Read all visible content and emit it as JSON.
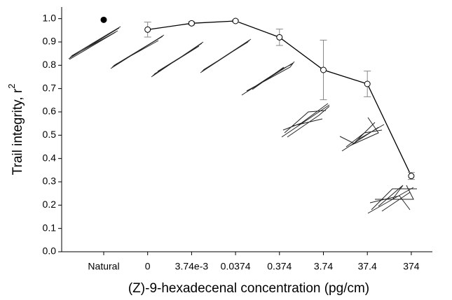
{
  "chart_data": {
    "type": "line",
    "y_label": "Trail integrity, r",
    "y_label_superscript": "2",
    "x_label": "(Z)-9-hexadecenal concentration (pg/cm)",
    "categories": [
      "Natural",
      "0",
      "3.74e-3",
      "0.0374",
      "0.374",
      "3.74",
      "37.4",
      "374"
    ],
    "series": [
      {
        "name": "Natural",
        "color": "#000000",
        "filled": true,
        "connected": false,
        "values": [
          0.995,
          null,
          null,
          null,
          null,
          null,
          null,
          null
        ],
        "errors": [
          null,
          null,
          null,
          null,
          null,
          null,
          null,
          null
        ]
      },
      {
        "name": "(Z)-9-hexadecenal",
        "color": "#000000",
        "filled": false,
        "connected": true,
        "values": [
          null,
          0.953,
          0.98,
          0.99,
          0.92,
          0.78,
          0.72,
          0.325
        ],
        "errors": [
          null,
          0.032,
          0.007,
          0.004,
          0.035,
          0.128,
          0.055,
          0.015
        ]
      }
    ],
    "ylim": [
      0,
      1.05
    ],
    "yticks": [
      {
        "value": 0,
        "label": "0.0"
      },
      0.1,
      0.2,
      0.3,
      0.4,
      0.5,
      0.6,
      0.7,
      0.8,
      0.9,
      {
        "value": 1,
        "label": "1.0"
      }
    ],
    "grid": false
  }
}
